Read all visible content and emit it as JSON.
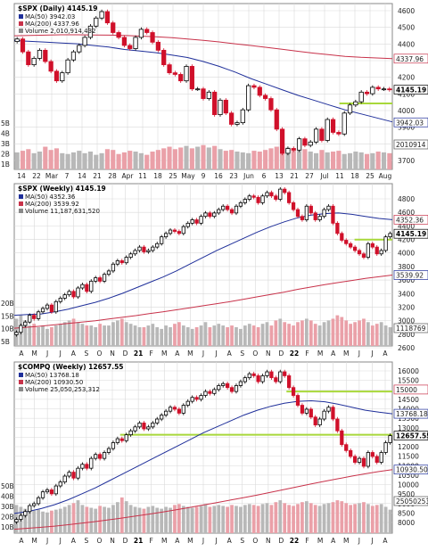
{
  "chart_data": [
    {
      "type": "candlestick",
      "title": "$SPX (Daily) 4145.19",
      "legend": [
        {
          "text": "MA(50) 3942.03",
          "color": "#1f2f9a"
        },
        {
          "text": "MA(200) 4337.96",
          "color": "#c8324a"
        },
        {
          "text": "Volume 2,010,914,432",
          "color": "#888888"
        }
      ],
      "x_ticks": [
        "14",
        "22",
        "Mar",
        "7",
        "14",
        "21",
        "28",
        "Apr",
        "11",
        "18",
        "25",
        "May",
        "9",
        "16",
        "23",
        "Jun",
        "6",
        "13",
        "21",
        "27",
        "Jul",
        "11",
        "18",
        "25",
        "Aug"
      ],
      "y_ticks": [
        "4600",
        "4500",
        "4400",
        "4300",
        "4200",
        "4100",
        "4000",
        "3900",
        "3800",
        "3700"
      ],
      "ylim": [
        3650,
        4680
      ],
      "volume_ticks": [
        "5B",
        "4B",
        "3B",
        "2B",
        "1B"
      ],
      "price_tags": [
        "4337.96",
        "4145.19",
        "3942.03",
        "2010914"
      ],
      "series": [
        {
          "name": "MA(50)",
          "color": "#1f2f9a",
          "values": [
            4450,
            4445,
            4440,
            4435,
            4430,
            4420,
            4410,
            4395,
            4385,
            4375,
            4360,
            4345,
            4320,
            4290,
            4255,
            4215,
            4180,
            4145,
            4110,
            4080,
            4050,
            4020,
            3995,
            3970,
            3945
          ]
        },
        {
          "name": "MA(200)",
          "color": "#c8324a",
          "values": [
            4480,
            4482,
            4484,
            4486,
            4486,
            4485,
            4484,
            4482,
            4478,
            4474,
            4468,
            4460,
            4452,
            4442,
            4430,
            4420,
            4408,
            4396,
            4384,
            4372,
            4362,
            4352,
            4346,
            4342,
            4338
          ]
        }
      ],
      "closes": [
        4460,
        4380,
        4300,
        4340,
        4390,
        4320,
        4260,
        4200,
        4250,
        4330,
        4380,
        4420,
        4470,
        4540,
        4590,
        4630,
        4560,
        4500,
        4470,
        4420,
        4400,
        4470,
        4520,
        4500,
        4440,
        4390,
        4300,
        4250,
        4240,
        4200,
        4290,
        4150,
        4150,
        4090,
        4130,
        3990,
        4080,
        4000,
        3930,
        3940,
        4020,
        4170,
        4160,
        4110,
        4090,
        4020,
        3900,
        3750,
        3780,
        3770,
        3840,
        3800,
        3820,
        3900,
        3830,
        3960,
        3880,
        3870,
        4000,
        4050,
        4070,
        4130,
        4120,
        4160,
        4150,
        4150,
        4145
      ],
      "volume": [
        2.1,
        2.3,
        2.5,
        2.0,
        2.2,
        2.8,
        2.4,
        2.6,
        2.0,
        1.9,
        2.1,
        2.3,
        2.0,
        2.2,
        1.8,
        2.0,
        2.5,
        2.4,
        1.9,
        2.1,
        2.3,
        2.2,
        2.0,
        1.8,
        2.2,
        2.4,
        2.6,
        2.8,
        2.5,
        2.7,
        2.9,
        2.6,
        2.8,
        3.0,
        2.7,
        2.9,
        2.5,
        2.3,
        2.4,
        2.2,
        2.1,
        2.0,
        2.3,
        2.2,
        2.4,
        2.6,
        2.8,
        3.1,
        2.7,
        2.4,
        2.3,
        2.5,
        2.2,
        2.0,
        2.4,
        2.1,
        2.2,
        2.3,
        1.9,
        2.0,
        2.2,
        2.1,
        1.9,
        2.0,
        2.2,
        2.1,
        2.0
      ],
      "vol_max": 5.5,
      "horizontal_lines": [
        {
          "value": 4060,
          "x_from": 0.86,
          "color": "#a8d83a"
        }
      ]
    },
    {
      "type": "candlestick",
      "title": "$SPX (Weekly) 4145.19",
      "legend": [
        {
          "text": "MA(50) 4352.36",
          "color": "#1f2f9a"
        },
        {
          "text": "MA(200) 3539.92",
          "color": "#c8324a"
        },
        {
          "text": "Volume 11,187,631,520",
          "color": "#888888"
        }
      ],
      "x_ticks": [
        "A",
        "M",
        "J",
        "J",
        "A",
        "S",
        "O",
        "N",
        "D",
        "21",
        "F",
        "M",
        "A",
        "M",
        "J",
        "J",
        "A",
        "S",
        "O",
        "N",
        "D",
        "22",
        "F",
        "M",
        "A",
        "M",
        "J",
        "J",
        "A"
      ],
      "y_ticks": [
        "4800",
        "4600",
        "4400",
        "4200",
        "4000",
        "3800",
        "3600",
        "3400",
        "3200",
        "3000",
        "2800",
        "2600"
      ],
      "ylim": [
        2500,
        4880
      ],
      "volume_ticks": [
        "20B",
        "15B",
        "10B",
        "5B"
      ],
      "price_tags": [
        "4352.36",
        "4145.19",
        "3539.92",
        "1118769"
      ],
      "series": [
        {
          "name": "MA(50)",
          "color": "#1f2f9a",
          "values": [
            2950,
            2960,
            2970,
            3000,
            3040,
            3090,
            3140,
            3200,
            3270,
            3350,
            3430,
            3510,
            3600,
            3700,
            3800,
            3900,
            3990,
            4080,
            4170,
            4250,
            4320,
            4380,
            4420,
            4440,
            4450,
            4430,
            4400,
            4370,
            4352
          ]
        },
        {
          "name": "MA(200)",
          "color": "#c8324a",
          "values": [
            2760,
            2775,
            2790,
            2810,
            2830,
            2850,
            2870,
            2895,
            2920,
            2945,
            2975,
            3000,
            3030,
            3060,
            3090,
            3120,
            3150,
            3185,
            3220,
            3255,
            3290,
            3330,
            3365,
            3400,
            3430,
            3460,
            3490,
            3515,
            3540
          ]
        }
      ],
      "closes": [
        2700,
        2800,
        2850,
        2950,
        2900,
        3000,
        3050,
        3100,
        3000,
        3150,
        3200,
        3250,
        3300,
        3220,
        3350,
        3400,
        3300,
        3450,
        3500,
        3450,
        3550,
        3600,
        3700,
        3750,
        3720,
        3800,
        3850,
        3900,
        3950,
        3880,
        3900,
        3950,
        4000,
        4100,
        4150,
        4200,
        4180,
        4150,
        4250,
        4300,
        4350,
        4300,
        4400,
        4450,
        4400,
        4450,
        4500,
        4550,
        4500,
        4450,
        4550,
        4600,
        4650,
        4700,
        4680,
        4600,
        4700,
        4750,
        4700,
        4650,
        4800,
        4750,
        4600,
        4500,
        4400,
        4350,
        4550,
        4450,
        4350,
        4400,
        4500,
        4550,
        4300,
        4150,
        4050,
        4000,
        3950,
        3900,
        3850,
        3800,
        4000,
        3950,
        3850,
        3900,
        4100,
        4150
      ],
      "volume": [
        16,
        18,
        15,
        12,
        13,
        11,
        12,
        10,
        11,
        12,
        13,
        14,
        15,
        16,
        14,
        13,
        12,
        12,
        11,
        13,
        12,
        12,
        14,
        15,
        16,
        14,
        13,
        12,
        11,
        11,
        12,
        13,
        11,
        10,
        12,
        11,
        13,
        14,
        12,
        11,
        10,
        11,
        12,
        14,
        11,
        12,
        13,
        12,
        11,
        12,
        11,
        10,
        12,
        13,
        12,
        11,
        13,
        14,
        12,
        15,
        16,
        14,
        13,
        12,
        14,
        15,
        16,
        15,
        13,
        12,
        14,
        15,
        16,
        18,
        17,
        15,
        13,
        14,
        15,
        16,
        14,
        12,
        13,
        14,
        12,
        11
      ],
      "vol_max": 22,
      "horizontal_lines": [
        {
          "value": 4060,
          "x_from": 0.9,
          "color": "#a8d83a"
        }
      ]
    },
    {
      "type": "candlestick",
      "title": "$COMPQ (Weekly) 12657.55",
      "legend": [
        {
          "text": "MA(50) 13768.18",
          "color": "#1f2f9a"
        },
        {
          "text": "MA(200) 10930.50",
          "color": "#c8324a"
        },
        {
          "text": "Volume 25,050,253,312",
          "color": "#888888"
        }
      ],
      "x_ticks": [
        "A",
        "M",
        "J",
        "J",
        "A",
        "S",
        "O",
        "N",
        "D",
        "21",
        "F",
        "M",
        "A",
        "M",
        "J",
        "J",
        "A",
        "S",
        "O",
        "N",
        "D",
        "22",
        "F",
        "M",
        "A",
        "M",
        "J",
        "J",
        "A"
      ],
      "y_ticks": [
        "16000",
        "15500",
        "15000",
        "14500",
        "14000",
        "13500",
        "13000",
        "12500",
        "12000",
        "11500",
        "11000",
        "10500",
        "10000",
        "9500",
        "9000",
        "8500",
        "8000"
      ],
      "ylim": [
        7700,
        16400
      ],
      "volume_ticks": [
        "50B",
        "40B",
        "30B",
        "20B",
        "10B"
      ],
      "price_tags": [
        "15000",
        "13768.18",
        "12657.55",
        "10930.50",
        "25050253"
      ],
      "series": [
        {
          "name": "MA(50)",
          "color": "#1f2f9a",
          "values": [
            8700,
            8800,
            8950,
            9150,
            9400,
            9700,
            10000,
            10350,
            10700,
            11050,
            11400,
            11750,
            12100,
            12450,
            12800,
            13100,
            13400,
            13700,
            13950,
            14150,
            14300,
            14400,
            14430,
            14380,
            14250,
            14100,
            13950,
            13850,
            13768
          ]
        },
        {
          "name": "MA(200)",
          "color": "#c8324a",
          "values": [
            7900,
            7950,
            8000,
            8060,
            8130,
            8210,
            8290,
            8380,
            8470,
            8570,
            8670,
            8780,
            8890,
            9010,
            9130,
            9250,
            9380,
            9510,
            9640,
            9780,
            9920,
            10060,
            10200,
            10340,
            10470,
            10600,
            10720,
            10830,
            10930
          ]
        }
      ],
      "closes": [
        8400,
        8600,
        8800,
        9100,
        9200,
        9500,
        9800,
        9900,
        9700,
        10100,
        10300,
        10600,
        10800,
        10500,
        11000,
        11200,
        11000,
        11500,
        11700,
        11500,
        11800,
        12000,
        12300,
        12500,
        12400,
        12700,
        12900,
        13100,
        13300,
        13000,
        13100,
        13300,
        13500,
        13700,
        13900,
        14100,
        14000,
        13800,
        14200,
        14400,
        14600,
        14500,
        14700,
        14900,
        14800,
        15000,
        15200,
        15300,
        15100,
        14900,
        15200,
        15400,
        15600,
        15800,
        15700,
        15400,
        15700,
        15900,
        15600,
        15400,
        15900,
        15700,
        15100,
        14700,
        14200,
        13800,
        14000,
        13600,
        13200,
        13500,
        13900,
        14100,
        13500,
        12900,
        12200,
        11900,
        11600,
        11300,
        11500,
        11100,
        11800,
        11600,
        11300,
        11800,
        12300,
        12657
      ],
      "volume": [
        30,
        28,
        26,
        25,
        24,
        25,
        23,
        22,
        24,
        25,
        26,
        28,
        30,
        32,
        35,
        30,
        28,
        27,
        26,
        29,
        28,
        27,
        30,
        33,
        38,
        34,
        30,
        28,
        27,
        26,
        28,
        29,
        27,
        26,
        28,
        27,
        30,
        31,
        29,
        28,
        27,
        28,
        29,
        31,
        28,
        29,
        30,
        29,
        28,
        30,
        29,
        28,
        30,
        31,
        30,
        29,
        31,
        32,
        30,
        33,
        35,
        32,
        30,
        29,
        31,
        33,
        34,
        32,
        30,
        29,
        31,
        32,
        33,
        35,
        34,
        32,
        30,
        31,
        32,
        33,
        31,
        29,
        30,
        31,
        28,
        25
      ],
      "vol_max": 55,
      "horizontal_lines": [
        {
          "value": 14900,
          "x_from": 0.72,
          "color": "#a8d83a"
        },
        {
          "value": 12700,
          "x_from": 0.28,
          "color": "#a8d83a"
        }
      ]
    }
  ]
}
